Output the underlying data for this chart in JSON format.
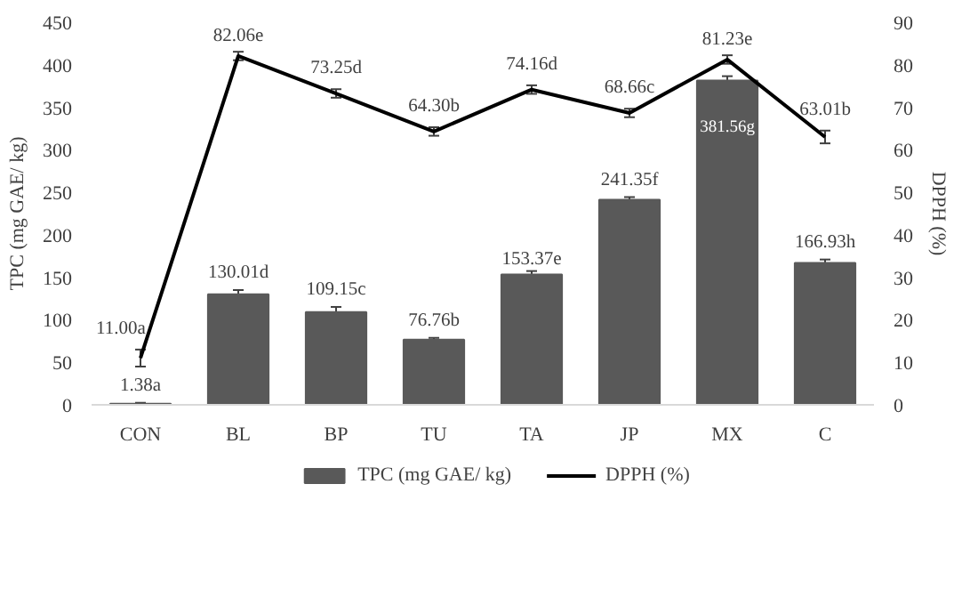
{
  "chart_data": {
    "type": "bar",
    "categories": [
      "CON",
      "BL",
      "BP",
      "TU",
      "TA",
      "JP",
      "MX",
      "C"
    ],
    "ylabel": "TPC (mg GAE/ kg)",
    "y2label": "DPPH (%)",
    "ylim": [
      0,
      450
    ],
    "yticks": [
      0,
      50,
      100,
      150,
      200,
      250,
      300,
      350,
      400,
      450
    ],
    "y2lim": [
      0,
      90
    ],
    "y2ticks": [
      0,
      10,
      20,
      30,
      40,
      50,
      60,
      70,
      80,
      90
    ],
    "series": [
      {
        "name": "TPC (mg GAE/ kg)",
        "color": "#595959",
        "values": [
          1.38,
          130.01,
          109.15,
          76.76,
          153.37,
          241.35,
          381.56,
          166.93
        ],
        "errors": [
          1,
          5,
          6,
          2,
          4,
          3,
          5,
          4
        ],
        "value_labels": [
          "1.38a",
          "130.01d",
          "109.15c",
          "76.76b",
          "153.37e",
          "241.35f",
          "381.56g",
          "166.93h"
        ]
      },
      {
        "name": "DPPH (%)",
        "type": "line",
        "axis": "y2",
        "color": "#000000",
        "values": [
          11.0,
          82.06,
          73.25,
          64.3,
          74.16,
          68.66,
          81.23,
          63.01
        ],
        "errors": [
          2,
          1,
          1,
          1,
          1,
          1,
          1,
          1.5
        ],
        "value_labels": [
          "11.00a",
          "82.06e",
          "73.25d",
          "64.30b",
          "74.16d",
          "68.66c",
          "81.23e",
          "63.01b"
        ]
      }
    ],
    "grid": false,
    "legend": "bottom"
  }
}
